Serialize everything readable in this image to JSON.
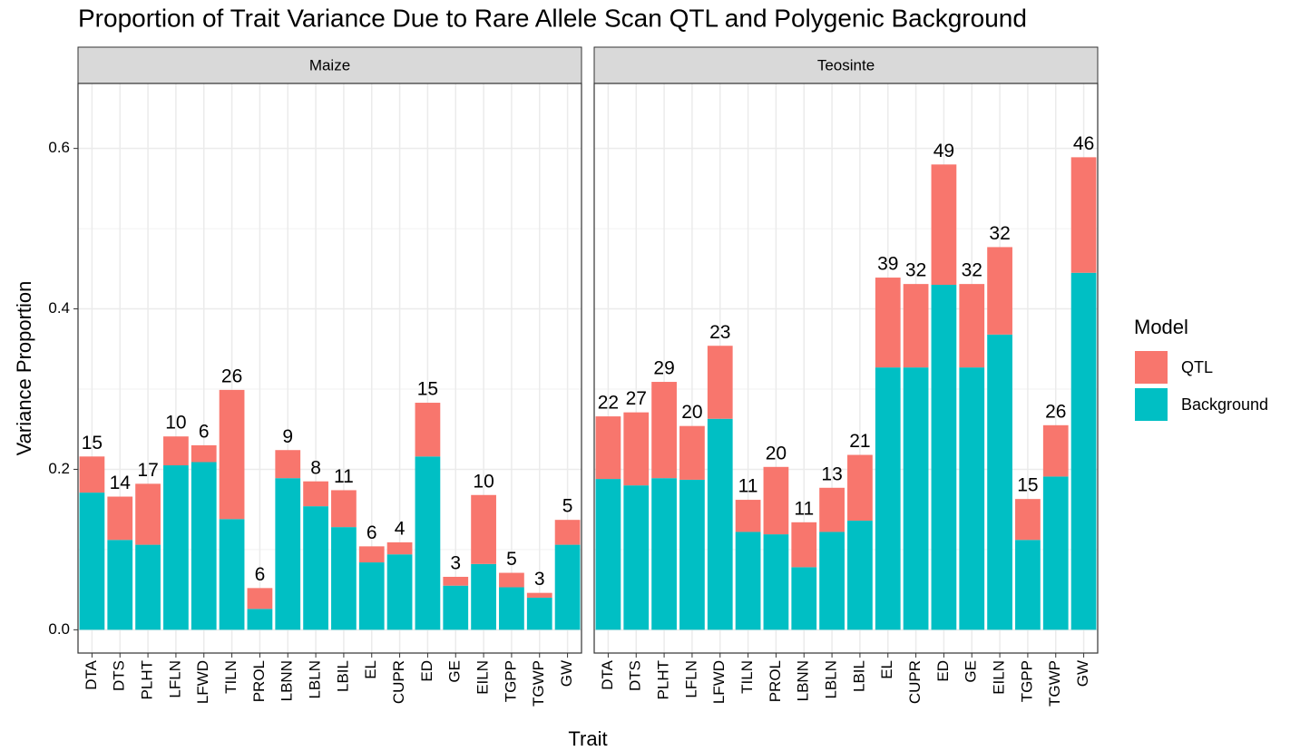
{
  "chart_data": {
    "type": "stacked-bar",
    "title": "Proportion of Trait Variance Due to Rare Allele Scan QTL and Polygenic Background",
    "x_label": "Trait",
    "y_label": "Variance Proportion",
    "legend_title": "Model",
    "categories": [
      "DTA",
      "DTS",
      "PLHT",
      "LFLN",
      "LFWD",
      "TILN",
      "PROL",
      "LBNN",
      "LBLN",
      "LBIL",
      "EL",
      "CUPR",
      "ED",
      "GE",
      "EILN",
      "TGPP",
      "TGWP",
      "GW"
    ],
    "ylim": [
      -0.029,
      0.681
    ],
    "yticks": [
      {
        "value": 0,
        "label": "0.0"
      },
      0.2,
      0.4,
      0.6
    ],
    "y_minor_ticks": [
      0.1,
      0.3,
      0.5
    ],
    "grid": true,
    "legend_position": "right",
    "series_names": [
      "Background",
      "QTL"
    ],
    "series_colors": [
      "#00BFC4",
      "#F8766D"
    ],
    "facets": [
      {
        "name": "Maize",
        "series": [
          {
            "values": [
              0.171,
              0.112,
              0.106,
              0.205,
              0.209,
              0.138,
              0.026,
              0.189,
              0.154,
              0.128,
              0.084,
              0.094,
              0.216,
              0.055,
              0.082,
              0.053,
              0.04,
              0.106
            ]
          },
          {
            "values": [
              0.045,
              0.054,
              0.076,
              0.036,
              0.021,
              0.161,
              0.026,
              0.035,
              0.031,
              0.046,
              0.02,
              0.015,
              0.067,
              0.011,
              0.086,
              0.018,
              0.006,
              0.031
            ]
          }
        ],
        "top_labels": [
          15,
          14,
          17,
          10,
          6,
          26,
          6,
          9,
          8,
          11,
          6,
          4,
          15,
          3,
          10,
          5,
          3,
          5
        ]
      },
      {
        "name": "Teosinte",
        "series": [
          {
            "values": [
              0.188,
              0.18,
              0.189,
              0.187,
              0.263,
              0.122,
              0.119,
              0.078,
              0.122,
              0.136,
              0.327,
              0.327,
              0.43,
              0.327,
              0.368,
              0.112,
              0.191,
              0.445
            ]
          },
          {
            "values": [
              0.078,
              0.091,
              0.12,
              0.067,
              0.091,
              0.04,
              0.084,
              0.056,
              0.055,
              0.082,
              0.112,
              0.104,
              0.15,
              0.104,
              0.109,
              0.051,
              0.064,
              0.144
            ]
          }
        ],
        "top_labels": [
          22,
          27,
          29,
          20,
          23,
          11,
          20,
          11,
          13,
          21,
          39,
          32,
          49,
          32,
          32,
          15,
          26,
          46
        ]
      }
    ]
  }
}
